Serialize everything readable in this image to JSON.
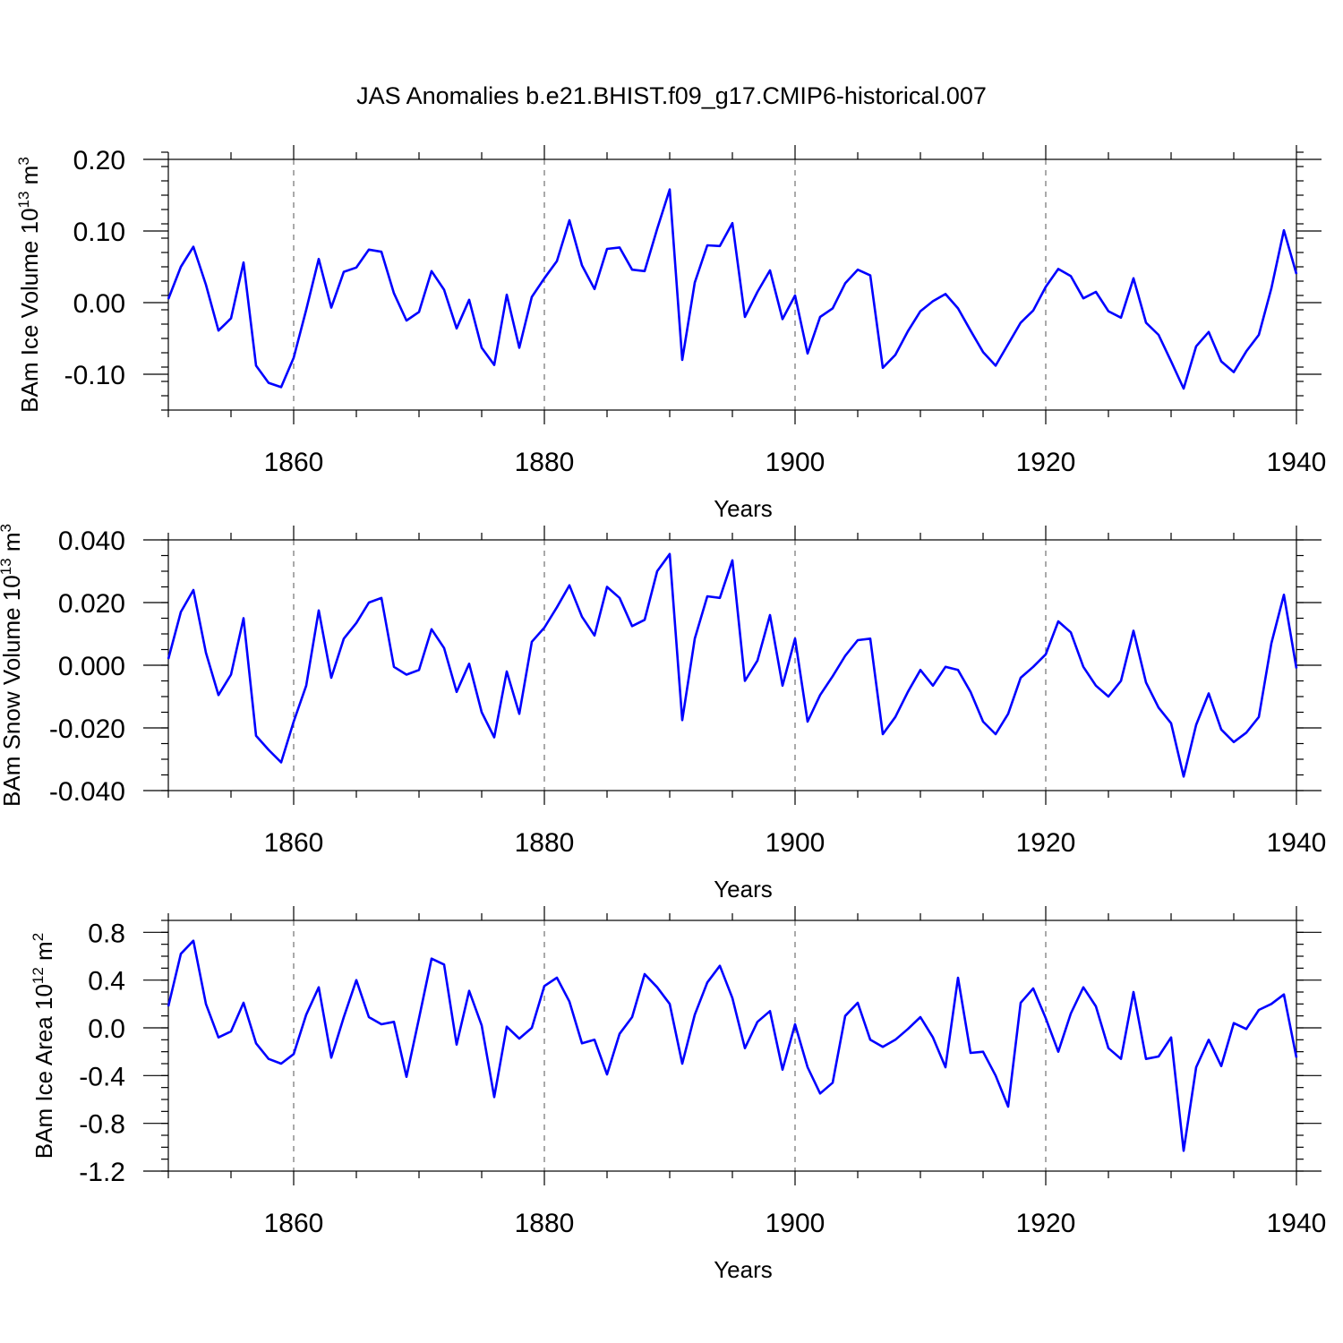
{
  "chart_data": {
    "title": "JAS Anomalies b.e21.BHIST.f09_g17.CMIP6-historical.007",
    "xlabel": "Years",
    "x_ticks": [
      1860,
      1880,
      1900,
      1920,
      1940
    ],
    "x_range": [
      1850,
      1940
    ],
    "x_grid_years": [
      1860,
      1880,
      1900,
      1920
    ],
    "line_color": "#0000ff",
    "panels": [
      {
        "type": "line",
        "ylabel": "BAm Ice Volume 10",
        "ylabel_exp": "13",
        "ylabel_unit": " m",
        "ylabel_unit_exp": "3",
        "ylim": [
          -0.15,
          0.2
        ],
        "y_ticks": [
          -0.1,
          0.0,
          0.1,
          0.2
        ],
        "y_tick_labels": [
          "-0.10",
          "0.00",
          "0.10",
          "0.20"
        ],
        "minor_step": 0.02,
        "values": [
          0.005,
          0.05,
          0.078,
          0.025,
          -0.039,
          -0.022,
          0.056,
          -0.088,
          -0.112,
          -0.118,
          -0.077,
          -0.01,
          0.061,
          -0.007,
          0.043,
          0.049,
          0.074,
          0.071,
          0.013,
          -0.025,
          -0.013,
          0.044,
          0.018,
          -0.036,
          0.004,
          -0.063,
          -0.087,
          0.011,
          -0.063,
          0.008,
          0.034,
          0.058,
          0.115,
          0.052,
          0.019,
          0.075,
          0.077,
          0.046,
          0.044,
          0.103,
          0.158,
          -0.08,
          0.028,
          0.08,
          0.079,
          0.111,
          -0.02,
          0.015,
          0.045,
          -0.023,
          0.01,
          -0.071,
          -0.02,
          -0.008,
          0.027,
          0.046,
          0.038,
          -0.091,
          -0.073,
          -0.04,
          -0.012,
          0.002,
          0.012,
          -0.008,
          -0.039,
          -0.069,
          -0.088,
          -0.058,
          -0.028,
          -0.011,
          0.022,
          0.047,
          0.037,
          0.006,
          0.015,
          -0.012,
          -0.021,
          0.034,
          -0.028,
          -0.045,
          -0.082,
          -0.12,
          -0.061,
          -0.041,
          -0.082,
          -0.097,
          -0.068,
          -0.045,
          0.02,
          0.101,
          0.04
        ]
      },
      {
        "type": "line",
        "ylabel": "BAm Snow Volume 10",
        "ylabel_exp": "13",
        "ylabel_unit": " m",
        "ylabel_unit_exp": "3",
        "ylim": [
          -0.04,
          0.04
        ],
        "y_ticks": [
          -0.04,
          -0.02,
          0.0,
          0.02,
          0.04
        ],
        "y_tick_labels": [
          "-0.040",
          "-0.020",
          "0.000",
          "0.020",
          "0.040"
        ],
        "minor_step": 0.005,
        "values": [
          0.002,
          0.017,
          0.024,
          0.004,
          -0.0095,
          -0.003,
          0.015,
          -0.0225,
          -0.027,
          -0.031,
          -0.018,
          -0.0065,
          0.0175,
          -0.004,
          0.0085,
          0.0135,
          0.02,
          0.0215,
          -0.0005,
          -0.003,
          -0.0015,
          0.0115,
          0.0055,
          -0.0085,
          0.0005,
          -0.015,
          -0.023,
          -0.002,
          -0.0155,
          0.0075,
          0.012,
          0.0185,
          0.0255,
          0.0155,
          0.0095,
          0.025,
          0.0215,
          0.0125,
          0.0145,
          0.03,
          0.0355,
          -0.0175,
          0.0085,
          0.022,
          0.0215,
          0.0335,
          -0.005,
          0.0015,
          0.016,
          -0.0065,
          0.0085,
          -0.018,
          -0.0095,
          -0.0035,
          0.003,
          0.008,
          0.0085,
          -0.022,
          -0.0165,
          -0.0085,
          -0.0015,
          -0.0065,
          -0.0005,
          -0.0015,
          -0.0085,
          -0.018,
          -0.022,
          -0.0155,
          -0.004,
          -0.0005,
          0.0035,
          0.014,
          0.0105,
          -0.0005,
          -0.0065,
          -0.01,
          -0.005,
          0.011,
          -0.0055,
          -0.0135,
          -0.0185,
          -0.0355,
          -0.019,
          -0.009,
          -0.0205,
          -0.0245,
          -0.0215,
          -0.0165,
          0.007,
          0.0225,
          -0.001
        ]
      },
      {
        "type": "line",
        "ylabel": "BAm Ice Area 10",
        "ylabel_exp": "12",
        "ylabel_unit": " m",
        "ylabel_unit_exp": "2",
        "ylim": [
          -1.2,
          0.9
        ],
        "y_ticks": [
          -1.2,
          -0.8,
          -0.4,
          0.0,
          0.4,
          0.8
        ],
        "y_tick_labels": [
          "-1.2",
          "-0.8",
          "-0.4",
          "0.0",
          "0.4",
          "0.8"
        ],
        "minor_step": 0.1,
        "values": [
          0.18,
          0.62,
          0.73,
          0.2,
          -0.08,
          -0.03,
          0.21,
          -0.13,
          -0.26,
          -0.3,
          -0.22,
          0.11,
          0.34,
          -0.25,
          0.09,
          0.4,
          0.09,
          0.03,
          0.05,
          -0.41,
          0.08,
          0.58,
          0.53,
          -0.14,
          0.31,
          0.02,
          -0.58,
          0.01,
          -0.09,
          0.0,
          0.35,
          0.42,
          0.22,
          -0.13,
          -0.1,
          -0.39,
          -0.05,
          0.09,
          0.45,
          0.34,
          0.2,
          -0.3,
          0.11,
          0.38,
          0.52,
          0.25,
          -0.17,
          0.05,
          0.14,
          -0.35,
          0.03,
          -0.33,
          -0.55,
          -0.46,
          0.1,
          0.21,
          -0.1,
          -0.16,
          -0.1,
          -0.01,
          0.09,
          -0.08,
          -0.33,
          0.42,
          -0.21,
          -0.2,
          -0.4,
          -0.66,
          0.21,
          0.33,
          0.08,
          -0.2,
          0.12,
          0.34,
          0.18,
          -0.17,
          -0.26,
          0.3,
          -0.26,
          -0.24,
          -0.08,
          -1.03,
          -0.33,
          -0.1,
          -0.32,
          0.04,
          -0.01,
          0.15,
          0.2,
          0.28,
          -0.25
        ]
      }
    ]
  }
}
